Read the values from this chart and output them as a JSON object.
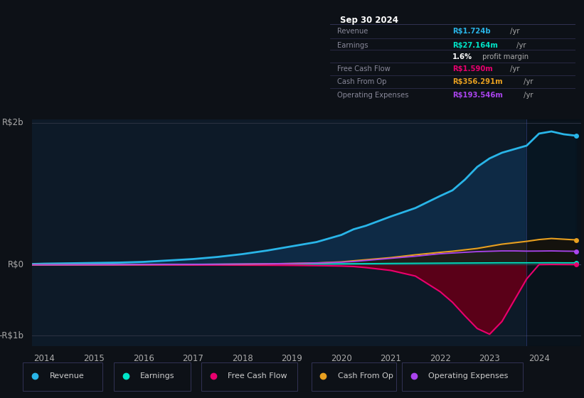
{
  "background_color": "#0d1117",
  "plot_bg": "#0d1a28",
  "title": "Sep 30 2024",
  "years": [
    2013.75,
    2014,
    2014.5,
    2015,
    2015.5,
    2016,
    2016.5,
    2017,
    2017.5,
    2018,
    2018.5,
    2019,
    2019.5,
    2020,
    2020.25,
    2020.5,
    2021,
    2021.5,
    2022,
    2022.25,
    2022.5,
    2022.75,
    2023,
    2023.25,
    2023.5,
    2023.75,
    2024,
    2024.25,
    2024.5,
    2024.75
  ],
  "revenue": [
    0.01,
    0.015,
    0.02,
    0.025,
    0.03,
    0.04,
    0.06,
    0.08,
    0.11,
    0.15,
    0.2,
    0.26,
    0.32,
    0.42,
    0.5,
    0.55,
    0.68,
    0.8,
    0.97,
    1.05,
    1.2,
    1.38,
    1.5,
    1.58,
    1.63,
    1.68,
    1.85,
    1.88,
    1.84,
    1.82
  ],
  "earnings": [
    0.003,
    0.004,
    0.004,
    0.005,
    0.005,
    0.006,
    0.007,
    0.007,
    0.008,
    0.009,
    0.01,
    0.011,
    0.012,
    0.013,
    0.014,
    0.015,
    0.018,
    0.02,
    0.022,
    0.023,
    0.024,
    0.025,
    0.026,
    0.027,
    0.027,
    0.027,
    0.027,
    0.028,
    0.027,
    0.027
  ],
  "free_cash_flow": [
    -0.003,
    -0.003,
    -0.003,
    -0.003,
    -0.003,
    -0.003,
    -0.003,
    -0.004,
    -0.004,
    -0.005,
    -0.006,
    -0.008,
    -0.012,
    -0.018,
    -0.025,
    -0.04,
    -0.08,
    -0.16,
    -0.38,
    -0.53,
    -0.72,
    -0.9,
    -0.98,
    -0.8,
    -0.5,
    -0.2,
    0.002,
    0.004,
    0.003,
    0.002
  ],
  "cash_from_op": [
    -0.002,
    -0.002,
    -0.001,
    0.0,
    0.001,
    0.002,
    0.003,
    0.004,
    0.006,
    0.008,
    0.012,
    0.018,
    0.025,
    0.04,
    0.055,
    0.07,
    0.1,
    0.14,
    0.175,
    0.19,
    0.21,
    0.23,
    0.26,
    0.29,
    0.31,
    0.33,
    0.355,
    0.37,
    0.36,
    0.35
  ],
  "operating_expenses": [
    -0.001,
    -0.001,
    0.0,
    0.001,
    0.002,
    0.003,
    0.004,
    0.005,
    0.007,
    0.01,
    0.013,
    0.018,
    0.025,
    0.035,
    0.045,
    0.06,
    0.09,
    0.12,
    0.155,
    0.165,
    0.175,
    0.185,
    0.19,
    0.195,
    0.195,
    0.192,
    0.193,
    0.195,
    0.192,
    0.19
  ],
  "revenue_color": "#29b5e8",
  "revenue_fill": "#0e2a45",
  "earnings_color": "#00e5c8",
  "free_cash_flow_color": "#e8006e",
  "free_cash_flow_fill": "#5a0018",
  "cash_from_op_color": "#e8a020",
  "cash_from_op_fill": "#2a1800",
  "operating_expenses_color": "#aa44ee",
  "ylim_min": -1.15,
  "ylim_max": 2.05,
  "xtick_years": [
    2014,
    2015,
    2016,
    2017,
    2018,
    2019,
    2020,
    2021,
    2022,
    2023,
    2024
  ],
  "legend_items": [
    {
      "label": "Revenue",
      "color": "#29b5e8"
    },
    {
      "label": "Earnings",
      "color": "#00e5c8"
    },
    {
      "label": "Free Cash Flow",
      "color": "#e8006e"
    },
    {
      "label": "Cash From Op",
      "color": "#e8a020"
    },
    {
      "label": "Operating Expenses",
      "color": "#aa44ee"
    }
  ],
  "table_rows": [
    {
      "label": "Revenue",
      "value": "R$1.724b",
      "val_color": "#29b5e8",
      "suffix": " /yr"
    },
    {
      "label": "Earnings",
      "value": "R$27.164m",
      "val_color": "#00e5c8",
      "suffix": " /yr"
    },
    {
      "label": "",
      "value": "1.6%",
      "val_color": "#ffffff",
      "suffix": " profit margin"
    },
    {
      "label": "Free Cash Flow",
      "value": "R$1.590m",
      "val_color": "#e8006e",
      "suffix": " /yr"
    },
    {
      "label": "Cash From Op",
      "value": "R$356.291m",
      "val_color": "#e8a020",
      "suffix": " /yr"
    },
    {
      "label": "Operating Expenses",
      "value": "R$193.546m",
      "val_color": "#aa44ee",
      "suffix": " /yr"
    }
  ]
}
